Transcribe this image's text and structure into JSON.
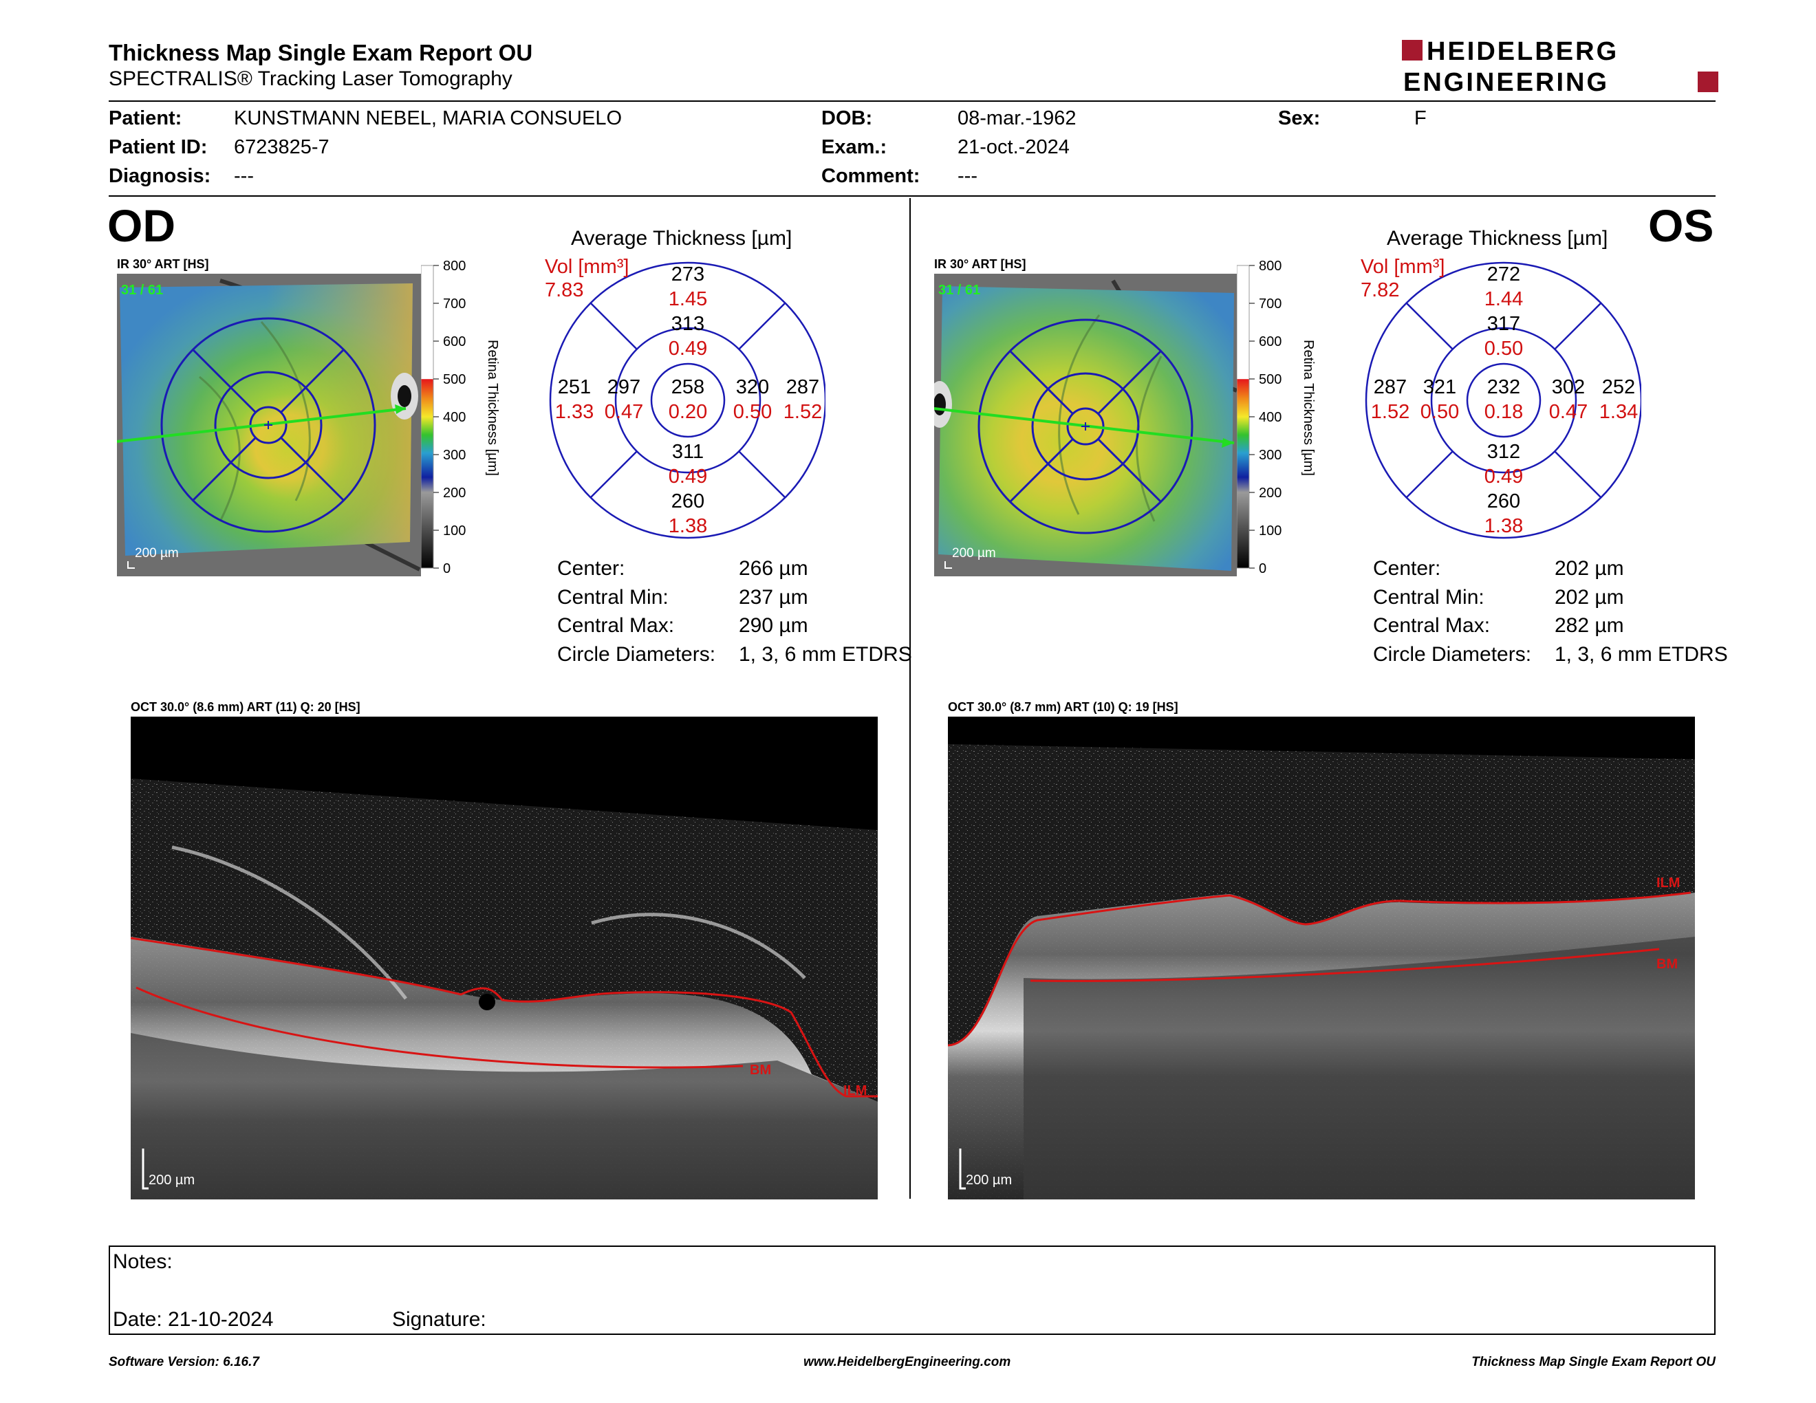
{
  "header": {
    "title": "Thickness Map Single Exam Report OU",
    "subtitle": "SPECTRALIS® Tracking Laser Tomography",
    "logo_line1": "HEIDELBERG",
    "logo_line2": "ENGINEERING"
  },
  "patient": {
    "patient_label": "Patient:",
    "patient_value": "KUNSTMANN NEBEL, MARIA CONSUELO",
    "id_label": "Patient ID:",
    "id_value": "6723825-7",
    "diagnosis_label": "Diagnosis:",
    "diagnosis_value": "---",
    "dob_label": "DOB:",
    "dob_value": "08-mar.-1962",
    "exam_label": "Exam.:",
    "exam_value": "21-oct.-2024",
    "comment_label": "Comment:",
    "comment_value": "---",
    "sex_label": "Sex:",
    "sex_value": "F"
  },
  "scale_bar": {
    "ticks": [
      "800",
      "700",
      "600",
      "500",
      "400",
      "300",
      "200",
      "100",
      "0"
    ],
    "label": "Retina  Thickness [µm]"
  },
  "od": {
    "eye_label": "OD",
    "ir_caption": "IR 30° ART [HS]",
    "frame_counter": "31 / 61",
    "ir_scale": "200 µm",
    "avg_title": "Average Thickness [µm]",
    "vol_label": "Vol [mm³]",
    "vol_value": "7.83",
    "sectors": {
      "outer_sup": {
        "t": "273",
        "v": "1.45"
      },
      "inner_sup": {
        "t": "313",
        "v": "0.49"
      },
      "outer_left": {
        "t": "251",
        "v": "1.33"
      },
      "inner_left": {
        "t": "297",
        "v": "0.47"
      },
      "center": {
        "t": "258",
        "v": "0.20"
      },
      "inner_right": {
        "t": "320",
        "v": "0.50"
      },
      "outer_right": {
        "t": "287",
        "v": "1.52"
      },
      "inner_inf": {
        "t": "311",
        "v": "0.49"
      },
      "outer_inf": {
        "t": "260",
        "v": "1.38"
      }
    },
    "stats": [
      {
        "label": "Center:",
        "value": "266 µm"
      },
      {
        "label": "Central Min:",
        "value": "237 µm"
      },
      {
        "label": "Central Max:",
        "value": "290 µm"
      },
      {
        "label": "Circle Diameters:",
        "value": "1, 3, 6 mm ETDRS"
      }
    ],
    "oct_caption": "OCT 30.0° (8.6 mm) ART (11) Q: 20 [HS]",
    "oct_scale": "200 µm",
    "layer_ilm": "ILM",
    "layer_bm": "BM"
  },
  "os": {
    "eye_label": "OS",
    "ir_caption": "IR 30° ART [HS]",
    "frame_counter": "31 / 61",
    "ir_scale": "200 µm",
    "avg_title": "Average Thickness [µm]",
    "vol_label": "Vol [mm³]",
    "vol_value": "7.82",
    "sectors": {
      "outer_sup": {
        "t": "272",
        "v": "1.44"
      },
      "inner_sup": {
        "t": "317",
        "v": "0.50"
      },
      "outer_left": {
        "t": "287",
        "v": "1.52"
      },
      "inner_left": {
        "t": "321",
        "v": "0.50"
      },
      "center": {
        "t": "232",
        "v": "0.18"
      },
      "inner_right": {
        "t": "302",
        "v": "0.47"
      },
      "outer_right": {
        "t": "252",
        "v": "1.34"
      },
      "inner_inf": {
        "t": "312",
        "v": "0.49"
      },
      "outer_inf": {
        "t": "260",
        "v": "1.38"
      }
    },
    "stats": [
      {
        "label": "Center:",
        "value": "202 µm"
      },
      {
        "label": "Central Min:",
        "value": "202 µm"
      },
      {
        "label": "Central Max:",
        "value": "282 µm"
      },
      {
        "label": "Circle Diameters:",
        "value": "1, 3, 6 mm ETDRS"
      }
    ],
    "oct_caption": "OCT 30.0° (8.7 mm) ART (10) Q: 19 [HS]",
    "oct_scale": "200 µm",
    "layer_ilm": "ILM",
    "layer_bm": "BM"
  },
  "notes": {
    "notes_label": "Notes:",
    "date_label": "Date: 21-10-2024",
    "signature_label": "Signature:"
  },
  "footer": {
    "left": "Software Version: 6.16.7",
    "center": "www.HeidelbergEngineering.com",
    "right": "Thickness Map Single Exam Report OU"
  },
  "colors": {
    "logo_red": "#a5192e",
    "grid_blue": "#1a1ab4",
    "volume_red": "#d11010",
    "layer_red": "#d81414",
    "scan_line_green": "#22dd22"
  }
}
